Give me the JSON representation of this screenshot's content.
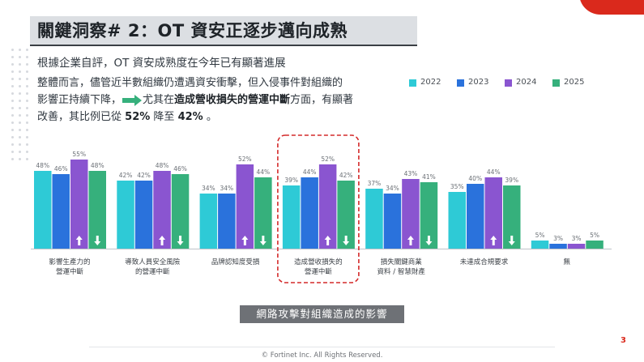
{
  "slide": {
    "title": "關鍵洞察# 2：OT 資安正逐步邁向成熟",
    "subtitle": "根據企業自評，OT 資安成熟度在今年已有顯著進展",
    "body_line1": "整體而言，儘管近半數組織仍遭遇資安衝擊，但入侵事件對組織的",
    "body_line2a": "影響正持續下降，",
    "body_line2b": "尤其在",
    "body_line2_bold": "造成營收損失的營運中斷",
    "body_line2c": "方面，有顯著",
    "body_line3a": "改善，其比例已從",
    "body_line3_v1": "52%",
    "body_line3b": "降至",
    "body_line3_v2": "42%",
    "body_line3c": "。",
    "caption": "網路攻擊對組織造成的影響",
    "page_number": "3",
    "footer": "© Fortinet Inc. All Rights Reserved."
  },
  "colors": {
    "2022": "#2ecad6",
    "2023": "#2a72dc",
    "2024": "#8a55d0",
    "2025": "#36b07c",
    "highlight_border": "#d42a2a",
    "accent_red": "#da291c"
  },
  "chart_data": {
    "type": "bar",
    "categories": [
      "影響生產力的\n營運中斷",
      "導致人員安全風險\n的營運中斷",
      "品牌認知度受損",
      "造成營收損失的\n營運中斷",
      "損失關鍵商業\n資料 / 智慧財產",
      "未達成合規要求",
      "無"
    ],
    "series": [
      {
        "name": "2022",
        "values": [
          48,
          42,
          34,
          39,
          37,
          35,
          5
        ]
      },
      {
        "name": "2023",
        "values": [
          46,
          42,
          34,
          44,
          34,
          40,
          3
        ]
      },
      {
        "name": "2024",
        "values": [
          55,
          48,
          52,
          52,
          43,
          44,
          3
        ]
      },
      {
        "name": "2025",
        "values": [
          48,
          46,
          44,
          42,
          41,
          39,
          5
        ]
      }
    ],
    "value_labels": [
      [
        "48%",
        "46%",
        "55%",
        "48%"
      ],
      [
        "42%",
        "42%",
        "48%",
        "46%"
      ],
      [
        "34%",
        "34%",
        "52%",
        "44%"
      ],
      [
        "39%",
        "44%",
        "52%",
        "42%"
      ],
      [
        "37%",
        "34%",
        "43%",
        "41%"
      ],
      [
        "35%",
        "40%",
        "44%",
        "39%"
      ],
      [
        "5%",
        "3%",
        "3%",
        "5%"
      ]
    ],
    "trend_arrows": [
      [
        "up",
        "down"
      ],
      [
        "up",
        "down"
      ],
      [
        "up",
        "down"
      ],
      [
        "up",
        "down"
      ],
      [
        "up",
        "down"
      ],
      [
        "up",
        "down"
      ],
      [
        "",
        ""
      ]
    ],
    "highlighted_category": 3,
    "ylim": [
      0,
      60
    ],
    "legend_placement": "top-right",
    "grid": false
  }
}
